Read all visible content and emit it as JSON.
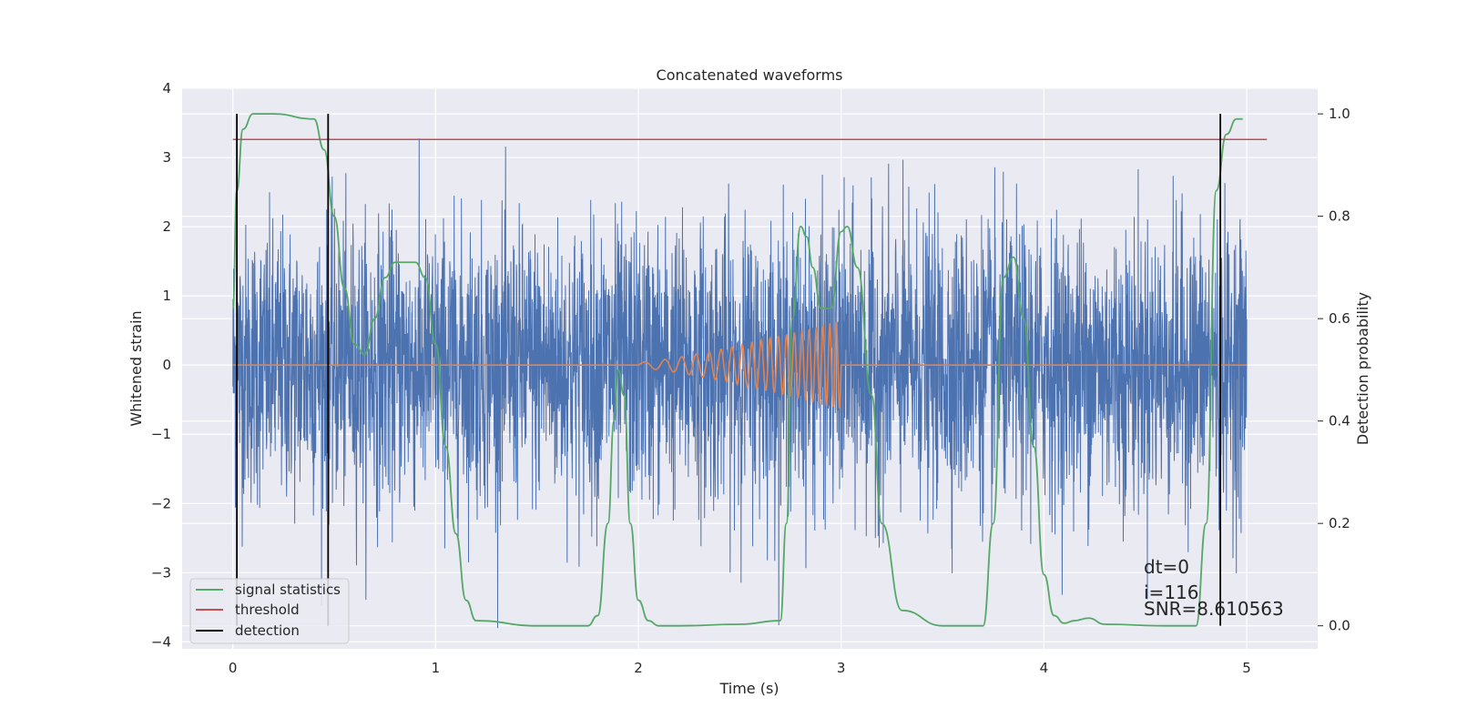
{
  "chart_data": {
    "type": "line",
    "title": "Concatenated waveforms",
    "xlabel": "Time (s)",
    "ylabel": "Whitened strain",
    "ylabel_right": "Detection probability",
    "xlim": [
      -0.25,
      5.35
    ],
    "ylim": [
      -4.1,
      4.0
    ],
    "ylim_right": [
      -0.045,
      1.05
    ],
    "x_ticks": [
      0,
      1,
      2,
      3,
      4,
      5
    ],
    "y_ticks": [
      -4,
      -3,
      -2,
      -1,
      0,
      1,
      2,
      3,
      4
    ],
    "y_ticks_right": [
      0.0,
      0.2,
      0.4,
      0.6,
      0.8,
      1.0
    ],
    "x_tick_labels": [
      "0",
      "1",
      "2",
      "3",
      "4",
      "5"
    ],
    "y_tick_labels": [
      "−4",
      "−3",
      "−2",
      "−1",
      "0",
      "1",
      "2",
      "3",
      "4"
    ],
    "y_tick_labels_right": [
      "0.0",
      "0.2",
      "0.4",
      "0.6",
      "0.8",
      "1.0"
    ],
    "grid": true,
    "legend_position": "lower-left",
    "series": [
      {
        "name": "",
        "axis": "left",
        "color": "#4c72b0",
        "kind": "noise",
        "x_range": [
          0,
          5
        ],
        "amplitude_typical": 1.0,
        "peak_max": 3.6,
        "trough_min": -3.8
      },
      {
        "name": "",
        "axis": "left",
        "color": "#dd8452",
        "kind": "chirp",
        "x_range": [
          0,
          5
        ],
        "chirp_start": 2.0,
        "chirp_end": 3.0,
        "chirp_peak_amplitude": 0.65
      },
      {
        "name": "signal statistics",
        "axis": "right",
        "color": "#55a868",
        "x": [
          0.0,
          0.02,
          0.05,
          0.1,
          0.2,
          0.4,
          0.45,
          0.5,
          0.55,
          0.6,
          0.65,
          0.7,
          0.75,
          0.8,
          0.9,
          0.95,
          1.0,
          1.05,
          1.1,
          1.15,
          1.2,
          1.5,
          1.75,
          1.8,
          1.85,
          1.88,
          1.9,
          1.93,
          1.96,
          2.0,
          2.05,
          2.1,
          2.2,
          2.5,
          2.7,
          2.73,
          2.76,
          2.8,
          2.83,
          2.86,
          2.9,
          2.95,
          3.0,
          3.03,
          3.08,
          3.15,
          3.2,
          3.3,
          3.5,
          3.7,
          3.75,
          3.8,
          3.85,
          3.9,
          3.95,
          4.0,
          4.05,
          4.1,
          4.15,
          4.22,
          4.3,
          4.6,
          4.75,
          4.8,
          4.85,
          4.9,
          4.95,
          4.98
        ],
        "y": [
          0.62,
          0.85,
          0.97,
          1.0,
          1.0,
          0.99,
          0.93,
          0.8,
          0.66,
          0.55,
          0.53,
          0.6,
          0.68,
          0.71,
          0.71,
          0.68,
          0.55,
          0.35,
          0.18,
          0.05,
          0.01,
          0.0,
          0.0,
          0.02,
          0.2,
          0.4,
          0.5,
          0.45,
          0.2,
          0.05,
          0.01,
          0.0,
          0.0,
          0.003,
          0.01,
          0.2,
          0.6,
          0.78,
          0.76,
          0.7,
          0.62,
          0.62,
          0.77,
          0.78,
          0.7,
          0.45,
          0.2,
          0.03,
          0.0,
          0.0,
          0.2,
          0.68,
          0.72,
          0.6,
          0.35,
          0.1,
          0.02,
          0.005,
          0.01,
          0.015,
          0.003,
          0.0,
          0.0,
          0.2,
          0.85,
          0.96,
          0.99,
          0.99
        ]
      },
      {
        "name": "threshold",
        "axis": "right",
        "color": "#c44e52",
        "x": [
          0.0,
          5.1
        ],
        "y": [
          0.95,
          0.95
        ]
      },
      {
        "name": "detection",
        "axis": "right",
        "color": "#000000",
        "x": [
          0.02,
          0.47,
          4.87
        ],
        "y_range": [
          0.0,
          1.0
        ]
      }
    ],
    "annotations": [
      "dt=0",
      "i=116",
      "SNR=8.610563"
    ]
  }
}
